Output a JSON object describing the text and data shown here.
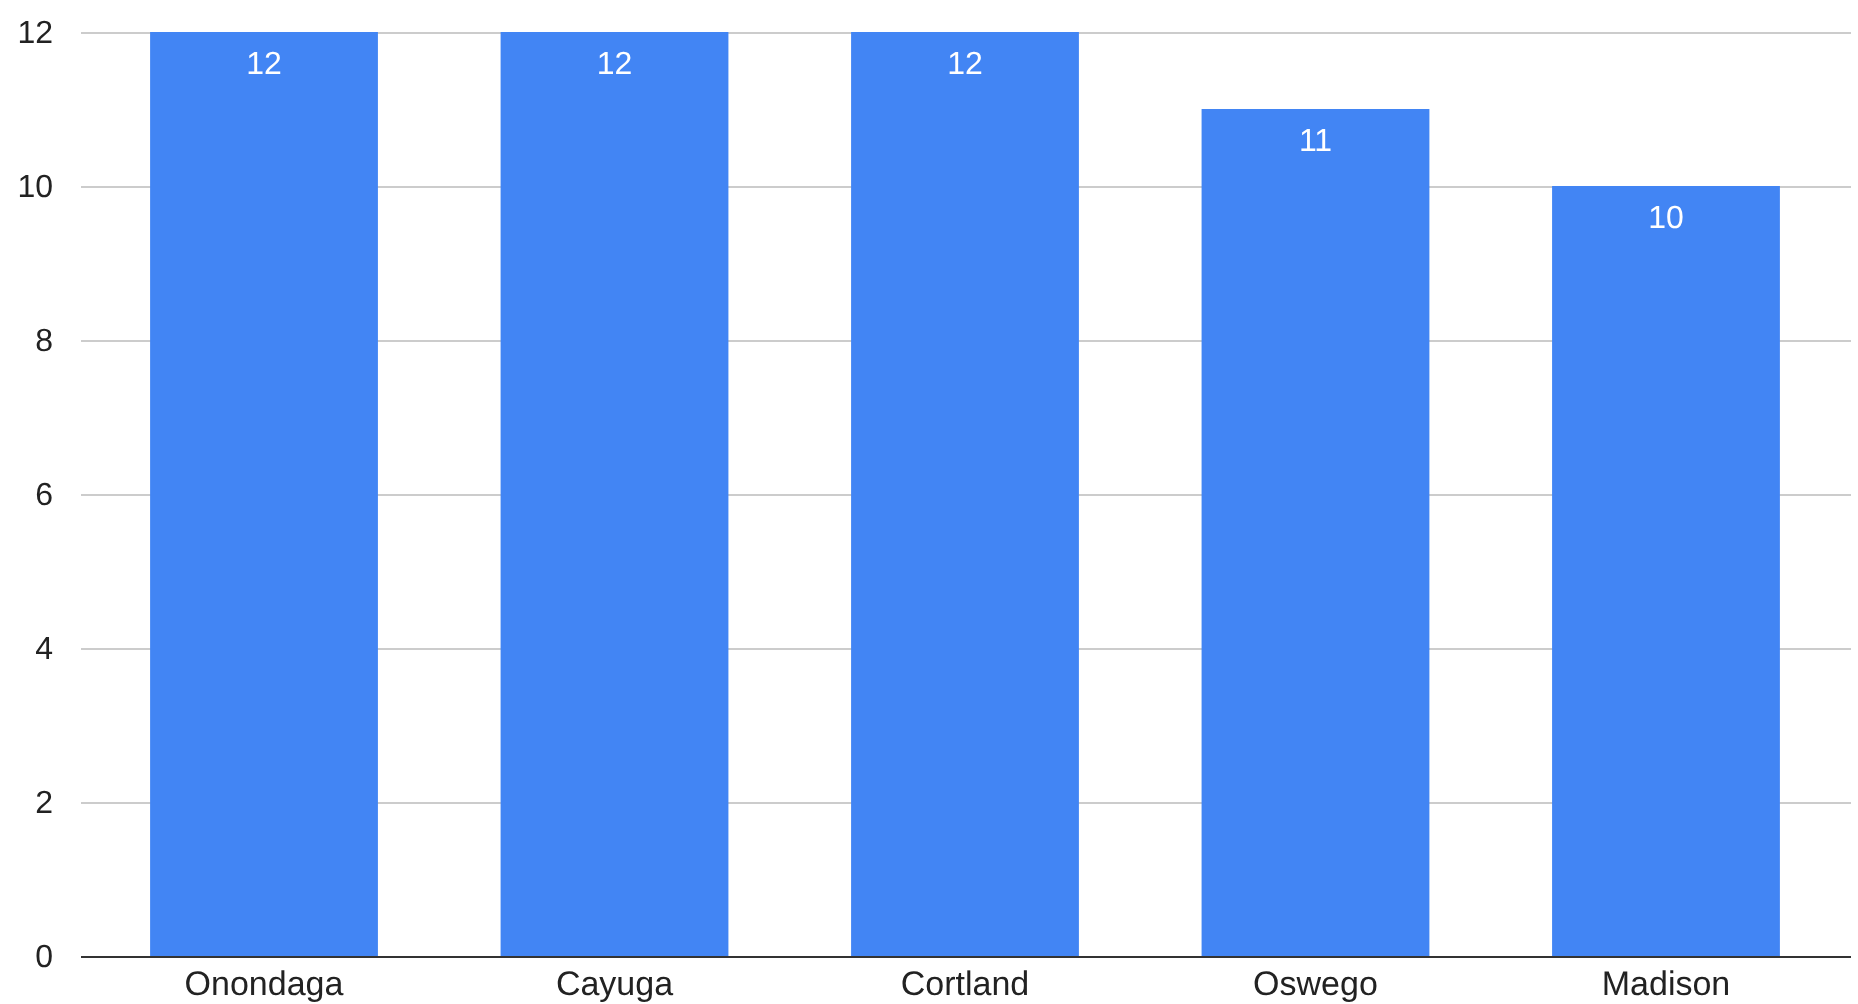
{
  "chart_data": {
    "type": "bar",
    "categories": [
      "Onondaga",
      "Cayuga",
      "Cortland",
      "Oswego",
      "Madison"
    ],
    "values": [
      12,
      12,
      12,
      11,
      10
    ],
    "color": "#4285f4",
    "ylim": [
      0,
      12
    ],
    "yticks": [
      0,
      2,
      4,
      6,
      8,
      10,
      12
    ],
    "grid": "y",
    "data_labels": true
  }
}
